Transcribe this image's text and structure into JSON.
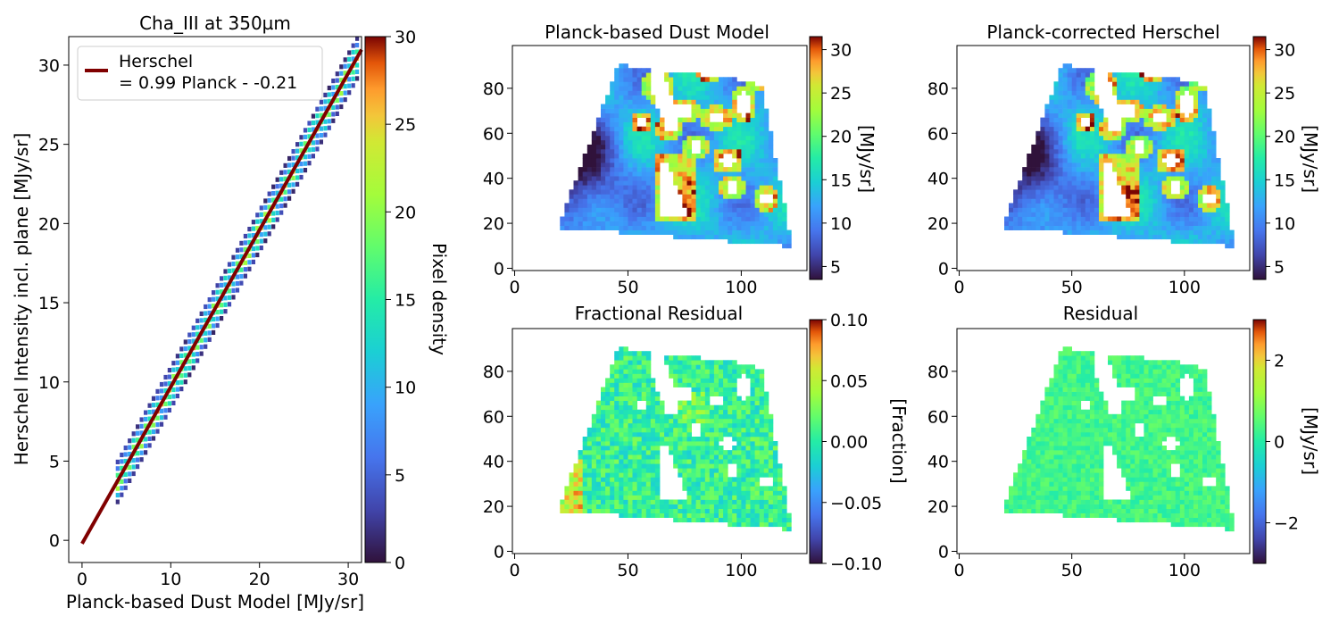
{
  "figure": {
    "panels": {
      "scatter": {
        "title": "Cha_III at 350µm",
        "xlabel": "Planck-based Dust Model [MJy/sr]",
        "ylabel": "Herschel Intensity incl. plane [MJy/sr]",
        "legend_line1": "Herschel",
        "legend_line2": "= 0.99 Planck - -0.21",
        "colorbar_label": "Pixel density"
      },
      "dust_model": {
        "title": "Planck-based Dust Model",
        "colorbar_label": "[MJy/sr]"
      },
      "corrected": {
        "title": "Planck-corrected Herschel",
        "colorbar_label": "[MJy/sr]"
      },
      "frac_residual": {
        "title": "Fractional Residual",
        "colorbar_label": "[Fraction]"
      },
      "residual": {
        "title": "Residual",
        "colorbar_label": "[MJy/sr]"
      }
    }
  },
  "chart_data": [
    {
      "type": "heatmap",
      "title": "Cha_III at 350µm",
      "xlabel": "Planck-based Dust Model [MJy/sr]",
      "ylabel": "Herschel Intensity incl. plane [MJy/sr]",
      "xlim": [
        -1.5,
        31.5
      ],
      "ylim": [
        -1.4,
        31.8
      ],
      "xticks": [
        0,
        10,
        20,
        30
      ],
      "yticks": [
        0,
        5,
        10,
        15,
        20,
        25,
        30
      ],
      "density_band": {
        "x_start": 3.8,
        "x_end": 31.2,
        "slope": 0.99,
        "intercept": -0.21
      },
      "fit_line": {
        "name": "Herschel\n= 0.99 Planck - -0.21",
        "slope": 0.99,
        "intercept": -0.21,
        "x_range": [
          0,
          31.5
        ],
        "color": "#800000"
      },
      "legend": "top-left",
      "colorbar": {
        "label": "Pixel density",
        "colormap": "turbo",
        "range": [
          0,
          30
        ],
        "ticks": [
          0,
          5,
          10,
          15,
          20,
          25,
          30
        ]
      }
    },
    {
      "type": "heatmap",
      "title": "Planck-based Dust Model",
      "xlim": [
        -1,
        129
      ],
      "ylim": [
        -1,
        99
      ],
      "xticks": [
        0,
        50,
        100
      ],
      "yticks": [
        0,
        20,
        40,
        60,
        80
      ],
      "map_extent": {
        "x": [
          19,
          121
        ],
        "y": [
          9,
          90
        ]
      },
      "value_range": [
        4,
        31
      ],
      "colorbar": {
        "label": "[MJy/sr]",
        "colormap": "turbo",
        "range": [
          3.5,
          31.5
        ],
        "ticks": [
          5,
          10,
          15,
          20,
          25,
          30
        ]
      }
    },
    {
      "type": "heatmap",
      "title": "Planck-corrected Herschel",
      "xlim": [
        -1,
        129
      ],
      "ylim": [
        -1,
        99
      ],
      "xticks": [
        0,
        50,
        100
      ],
      "yticks": [
        0,
        20,
        40,
        60,
        80
      ],
      "map_extent": {
        "x": [
          19,
          121
        ],
        "y": [
          9,
          90
        ]
      },
      "value_range": [
        4,
        31
      ],
      "colorbar": {
        "label": "[MJy/sr]",
        "colormap": "turbo",
        "range": [
          3.5,
          31.5
        ],
        "ticks": [
          5,
          10,
          15,
          20,
          25,
          30
        ]
      }
    },
    {
      "type": "heatmap",
      "title": "Fractional Residual",
      "xlim": [
        -1,
        129
      ],
      "ylim": [
        -1,
        99
      ],
      "xticks": [
        0,
        50,
        100
      ],
      "yticks": [
        0,
        20,
        40,
        60,
        80
      ],
      "map_extent": {
        "x": [
          19,
          121
        ],
        "y": [
          9,
          90
        ]
      },
      "value_range": [
        -0.1,
        0.1
      ],
      "colorbar": {
        "label": "[Fraction]",
        "colormap": "turbo",
        "range": [
          -0.1,
          0.1
        ],
        "ticks": [
          0.1,
          0.05,
          0.0,
          -0.05,
          -0.1
        ],
        "tick_labels": [
          "0.10",
          "0.05",
          "0.00",
          "−0.05",
          "−0.10"
        ]
      }
    },
    {
      "type": "heatmap",
      "title": "Residual",
      "xlim": [
        -1,
        129
      ],
      "ylim": [
        -1,
        99
      ],
      "xticks": [
        0,
        50,
        100
      ],
      "yticks": [
        0,
        20,
        40,
        60,
        80
      ],
      "map_extent": {
        "x": [
          19,
          121
        ],
        "y": [
          9,
          90
        ]
      },
      "value_range": [
        -3,
        3
      ],
      "colorbar": {
        "label": "[MJy/sr]",
        "colormap": "turbo",
        "range": [
          -3,
          3
        ],
        "ticks": [
          2,
          0,
          -2
        ],
        "tick_labels": [
          "2",
          "0",
          "−2"
        ]
      }
    }
  ]
}
